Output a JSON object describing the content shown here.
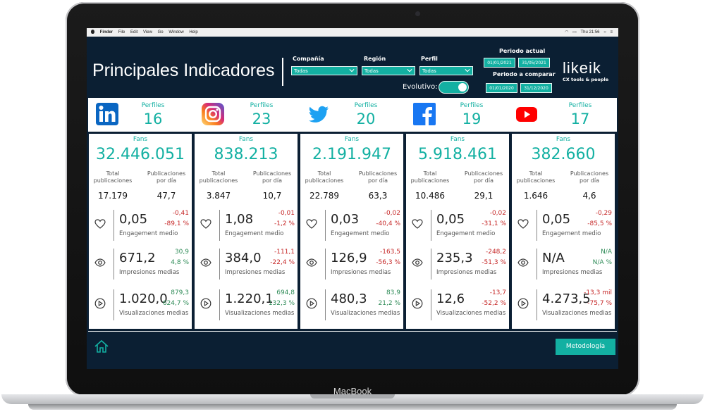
{
  "menubar": {
    "app": "Finder",
    "items": [
      "File",
      "Edit",
      "View",
      "Go",
      "Window",
      "Help"
    ],
    "clock": "Thu 21:56"
  },
  "header": {
    "title": "Principales Indicadores",
    "filters": [
      {
        "label": "Compañía",
        "value": "Todas"
      },
      {
        "label": "Región",
        "value": "Todas"
      },
      {
        "label": "Perfil",
        "value": "Todas"
      }
    ],
    "evolutivo_label": "Evolutivo:",
    "evolutivo_on": true,
    "periodo_actual_label": "Periodo actual",
    "periodo_actual": [
      "01/01/2021",
      "31/05/2021"
    ],
    "periodo_comparar_label": "Periodo a comparar",
    "periodo_comparar": [
      "01/01/2020",
      "31/12/2020"
    ]
  },
  "logo": {
    "word": "likeik",
    "tagline": "CX tools & people"
  },
  "networks": [
    {
      "name": "linkedin-icon",
      "label": "Perfiles",
      "value": "16",
      "color": "#0A66C2"
    },
    {
      "name": "instagram-icon",
      "label": "Perfiles",
      "value": "23",
      "color": "#E1306C"
    },
    {
      "name": "twitter-icon",
      "label": "Perfiles",
      "value": "20",
      "color": "#1DA1F2"
    },
    {
      "name": "facebook-icon",
      "label": "Perfiles",
      "value": "19",
      "color": "#1877F2"
    },
    {
      "name": "youtube-icon",
      "label": "Perfiles",
      "value": "17",
      "color": "#FF0000"
    }
  ],
  "stat_labels": {
    "fans": "Fans",
    "total_pub": "Total publicaciones",
    "pub_dia": "Publicaciones por día",
    "engagement": "Engagement medio",
    "impresiones": "Impresiones medias",
    "visualizaciones": "Visualizaciones medias"
  },
  "cards": [
    {
      "fans": "32.446.051",
      "total": "17.179",
      "per_day": "47,7",
      "engagement": {
        "value": "0,05",
        "d1": "-0,41",
        "d2": "-89,1 %",
        "trend": "neg"
      },
      "impresiones": {
        "value": "671,2",
        "d1": "30,9",
        "d2": "4,8 %",
        "trend": "pos"
      },
      "visualizaciones": {
        "value": "1.020,0",
        "d1": "879,3",
        "d2": "624,7 %",
        "trend": "pos"
      }
    },
    {
      "fans": "838.213",
      "total": "3.847",
      "per_day": "10,7",
      "engagement": {
        "value": "1,08",
        "d1": "-0,01",
        "d2": "-1,2 %",
        "trend": "neg"
      },
      "impresiones": {
        "value": "384,0",
        "d1": "-111,1",
        "d2": "-22,4 %",
        "trend": "neg"
      },
      "visualizaciones": {
        "value": "1.220,1",
        "d1": "694,8",
        "d2": "132,3 %",
        "trend": "pos"
      }
    },
    {
      "fans": "2.191.947",
      "total": "22.789",
      "per_day": "63,3",
      "engagement": {
        "value": "0,03",
        "d1": "-0,02",
        "d2": "-40,4 %",
        "trend": "neg"
      },
      "impresiones": {
        "value": "126,9",
        "d1": "-163,5",
        "d2": "-56,3 %",
        "trend": "neg"
      },
      "visualizaciones": {
        "value": "480,3",
        "d1": "83,9",
        "d2": "21,2 %",
        "trend": "pos"
      }
    },
    {
      "fans": "5.918.461",
      "total": "10.486",
      "per_day": "29,1",
      "engagement": {
        "value": "0,05",
        "d1": "-0,02",
        "d2": "-31,1 %",
        "trend": "neg"
      },
      "impresiones": {
        "value": "235,3",
        "d1": "-248,2",
        "d2": "-51,3 %",
        "trend": "neg"
      },
      "visualizaciones": {
        "value": "12,6",
        "d1": "-13,7",
        "d2": "-52,2 %",
        "trend": "neg"
      }
    },
    {
      "fans": "382.660",
      "total": "1.646",
      "per_day": "4,6",
      "engagement": {
        "value": "0,05",
        "d1": "-0,29",
        "d2": "-85,5 %",
        "trend": "neg"
      },
      "impresiones": {
        "value": "N/A",
        "d1": "N/A",
        "d2": "N/A %",
        "trend": "pos"
      },
      "visualizaciones": {
        "value": "4.273,5",
        "d1": "-13,3 mil",
        "d2": "-75,7 %",
        "trend": "neg"
      }
    }
  ],
  "footer": {
    "metodologia": "Metodología"
  },
  "device": {
    "brand": "MacBook"
  }
}
